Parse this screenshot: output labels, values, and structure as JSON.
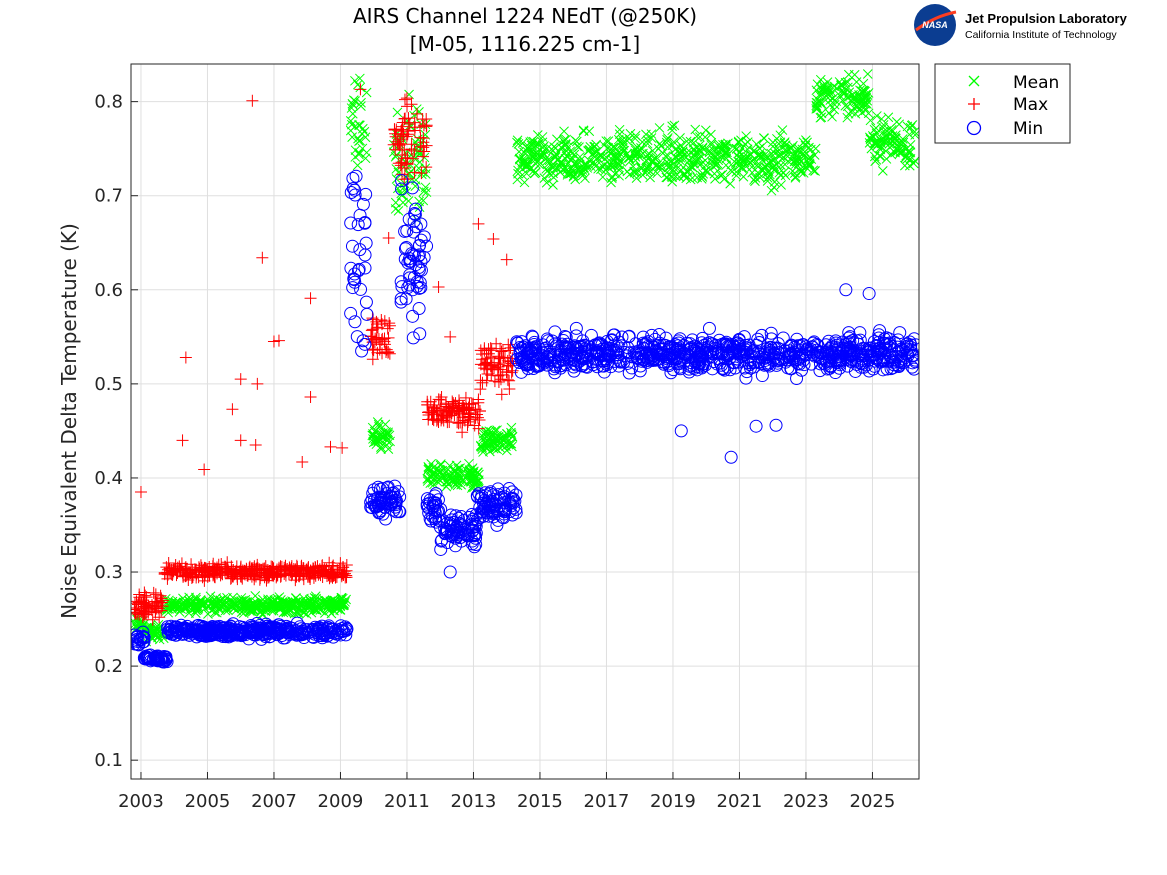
{
  "logo": {
    "org": "Jet Propulsion Laboratory",
    "sub": "California Institute of Technology",
    "agency": "NASA"
  },
  "chart_data": {
    "type": "scatter",
    "title": "AIRS Channel 1224 NEdT (@250K)",
    "subtitle": "[M-05, 1116.225 cm-1]",
    "xlabel": "",
    "ylabel": "Noise Equivalent Delta Temperature (K)",
    "xlim": [
      2002.7,
      2026.4
    ],
    "ylim": [
      0.08,
      0.84
    ],
    "xticks": [
      2003,
      2005,
      2007,
      2009,
      2011,
      2013,
      2015,
      2017,
      2019,
      2021,
      2023,
      2025
    ],
    "xtick_labels": [
      "2003",
      "2005",
      "2007",
      "2009",
      "2011",
      "2013",
      "2015",
      "2017",
      "2019",
      "2021",
      "2023",
      "2025"
    ],
    "yticks": [
      0.1,
      0.2,
      0.3,
      0.4,
      0.5,
      0.6,
      0.7,
      0.8
    ],
    "ytick_labels": [
      "0.1",
      "0.2",
      "0.3",
      "0.4",
      "0.5",
      "0.6",
      "0.7",
      "0.8"
    ],
    "grid": true,
    "legend_position": "outside-top-right",
    "series": [
      {
        "name": "Mean",
        "marker": "x",
        "color": "#00ff00",
        "segments": [
          {
            "x": [
              2002.8,
              2003.1
            ],
            "center": 0.245,
            "spread": 0.01
          },
          {
            "x": [
              2003.1,
              2003.7
            ],
            "center": 0.235,
            "spread": 0.012
          },
          {
            "x": [
              2003.7,
              2009.2
            ],
            "center": 0.265,
            "spread": 0.012
          },
          {
            "x": [
              2009.3,
              2009.8
            ],
            "center": 0.77,
            "spread": 0.07
          },
          {
            "x": [
              2009.9,
              2010.5
            ],
            "center": 0.445,
            "spread": 0.02
          },
          {
            "x": [
              2010.6,
              2011.6
            ],
            "center": 0.73,
            "spread": 0.09
          },
          {
            "x": [
              2011.6,
              2013.2
            ],
            "center": 0.4,
            "spread": 0.02
          },
          {
            "x": [
              2013.2,
              2014.2
            ],
            "center": 0.44,
            "spread": 0.02
          },
          {
            "x": [
              2014.3,
              2023.3
            ],
            "center": 0.74,
            "spread": 0.04
          },
          {
            "x": [
              2023.3,
              2024.9
            ],
            "center": 0.805,
            "spread": 0.03
          },
          {
            "x": [
              2024.9,
              2026.3
            ],
            "center": 0.755,
            "spread": 0.04
          }
        ]
      },
      {
        "name": "Max",
        "marker": "+",
        "color": "#ff0000",
        "segments": [
          {
            "x": [
              2002.8,
              2003.7
            ],
            "center": 0.265,
            "spread": 0.018
          },
          {
            "x": [
              2003.7,
              2009.2
            ],
            "center": 0.3,
            "spread": 0.012
          },
          {
            "x": [
              2009.9,
              2010.5
            ],
            "center": 0.55,
            "spread": 0.03
          },
          {
            "x": [
              2010.6,
              2011.6
            ],
            "center": 0.76,
            "spread": 0.06
          },
          {
            "x": [
              2011.6,
              2013.2
            ],
            "center": 0.47,
            "spread": 0.025
          },
          {
            "x": [
              2013.2,
              2014.2
            ],
            "center": 0.52,
            "spread": 0.04
          }
        ],
        "outliers": [
          {
            "x": 2006.35,
            "y": 0.801
          },
          {
            "x": 2006.65,
            "y": 0.634
          },
          {
            "x": 2004.35,
            "y": 0.528
          },
          {
            "x": 2008.1,
            "y": 0.591
          },
          {
            "x": 2007.0,
            "y": 0.545
          },
          {
            "x": 2007.15,
            "y": 0.546
          },
          {
            "x": 2006.5,
            "y": 0.5
          },
          {
            "x": 2006.0,
            "y": 0.505
          },
          {
            "x": 2005.75,
            "y": 0.473
          },
          {
            "x": 2008.1,
            "y": 0.486
          },
          {
            "x": 2004.25,
            "y": 0.44
          },
          {
            "x": 2006.0,
            "y": 0.44
          },
          {
            "x": 2006.45,
            "y": 0.435
          },
          {
            "x": 2008.7,
            "y": 0.433
          },
          {
            "x": 2009.05,
            "y": 0.432
          },
          {
            "x": 2004.9,
            "y": 0.409
          },
          {
            "x": 2007.85,
            "y": 0.417
          },
          {
            "x": 2003.0,
            "y": 0.385
          },
          {
            "x": 2009.6,
            "y": 0.813
          },
          {
            "x": 2010.45,
            "y": 0.655
          },
          {
            "x": 2011.95,
            "y": 0.603
          },
          {
            "x": 2013.15,
            "y": 0.67
          },
          {
            "x": 2013.6,
            "y": 0.654
          },
          {
            "x": 2014.0,
            "y": 0.632
          },
          {
            "x": 2012.3,
            "y": 0.55
          }
        ]
      },
      {
        "name": "Min",
        "marker": "o",
        "color": "#0000ff",
        "segments": [
          {
            "x": [
              2002.8,
              2003.1
            ],
            "center": 0.228,
            "spread": 0.01
          },
          {
            "x": [
              2003.1,
              2003.8
            ],
            "center": 0.208,
            "spread": 0.006
          },
          {
            "x": [
              2003.8,
              2009.2
            ],
            "center": 0.237,
            "spread": 0.01
          },
          {
            "x": [
              2009.3,
              2009.8
            ],
            "center": 0.64,
            "spread": 0.14
          },
          {
            "x": [
              2009.9,
              2010.8
            ],
            "center": 0.375,
            "spread": 0.025
          },
          {
            "x": [
              2010.8,
              2011.6
            ],
            "center": 0.63,
            "spread": 0.1
          },
          {
            "x": [
              2011.6,
              2012.0
            ],
            "center": 0.37,
            "spread": 0.03
          },
          {
            "x": [
              2012.0,
              2013.1
            ],
            "center": 0.345,
            "spread": 0.025
          },
          {
            "x": [
              2013.1,
              2014.3
            ],
            "center": 0.37,
            "spread": 0.025
          },
          {
            "x": [
              2014.3,
              2026.3
            ],
            "center": 0.532,
            "spread": 0.028
          }
        ],
        "outliers": [
          {
            "x": 2020.75,
            "y": 0.422
          },
          {
            "x": 2019.25,
            "y": 0.45
          },
          {
            "x": 2021.5,
            "y": 0.455
          },
          {
            "x": 2022.1,
            "y": 0.456
          },
          {
            "x": 2012.3,
            "y": 0.3
          },
          {
            "x": 2024.9,
            "y": 0.596
          },
          {
            "x": 2024.2,
            "y": 0.6
          }
        ]
      }
    ]
  }
}
